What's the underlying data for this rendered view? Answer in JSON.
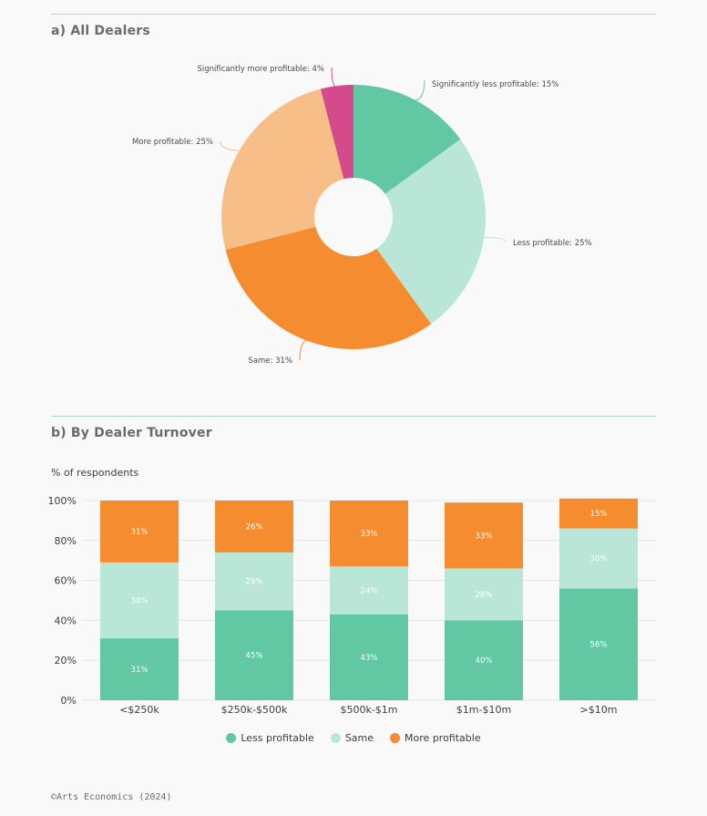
{
  "colors": {
    "less": "#62c7a3",
    "same": "#b9e6d6",
    "more": "#f58c2f",
    "sig_less": "#62c7a3",
    "less_profitable": "#b9e6d6",
    "same_pie": "#f58c2f",
    "more_profitable": "#f8be87",
    "sig_more": "#d44b8b"
  },
  "section_a": {
    "title": "a) All Dealers"
  },
  "section_b": {
    "title": "b) By Dealer Turnover",
    "ylabel": "% of respondents"
  },
  "legend": [
    {
      "label": "Less profitable",
      "color": "#62c7a3"
    },
    {
      "label": "Same",
      "color": "#b9e6d6"
    },
    {
      "label": "More profitable",
      "color": "#f58c2f"
    }
  ],
  "credit": "©Arts Economics (2024)",
  "chart_data": [
    {
      "type": "pie",
      "donut": true,
      "slices": [
        {
          "label": "Significantly less profitable: 15%",
          "name": "Significantly less profitable",
          "value": 15,
          "color": "#62c7a3"
        },
        {
          "label": "Less profitable: 25%",
          "name": "Less profitable",
          "value": 25,
          "color": "#b9e6d6"
        },
        {
          "label": "Same: 31%",
          "name": "Same",
          "value": 31,
          "color": "#f58c2f"
        },
        {
          "label": "More profitable: 25%",
          "name": "More profitable",
          "value": 25,
          "color": "#f8be87"
        },
        {
          "label": "Significantly more profitable: 4%",
          "name": "Significantly more profitable",
          "value": 4,
          "color": "#d44b8b"
        }
      ]
    },
    {
      "type": "bar",
      "stacked": true,
      "categories": [
        "<$250k",
        "$250k-$500k",
        "$500k-$1m",
        "$1m-$10m",
        ">$10m"
      ],
      "series": [
        {
          "name": "Less profitable",
          "values": [
            31,
            45,
            43,
            40,
            56
          ],
          "color": "#62c7a3"
        },
        {
          "name": "Same",
          "values": [
            38,
            29,
            24,
            26,
            30
          ],
          "color": "#b9e6d6"
        },
        {
          "name": "More profitable",
          "values": [
            31,
            26,
            33,
            33,
            15
          ],
          "color": "#f58c2f"
        }
      ],
      "ylabel": "% of respondents",
      "ylim": [
        0,
        100
      ],
      "yticks": [
        "0%",
        "20%",
        "40%",
        "60%",
        "80%",
        "100%"
      ],
      "grid": true,
      "legend": "bottom"
    }
  ]
}
